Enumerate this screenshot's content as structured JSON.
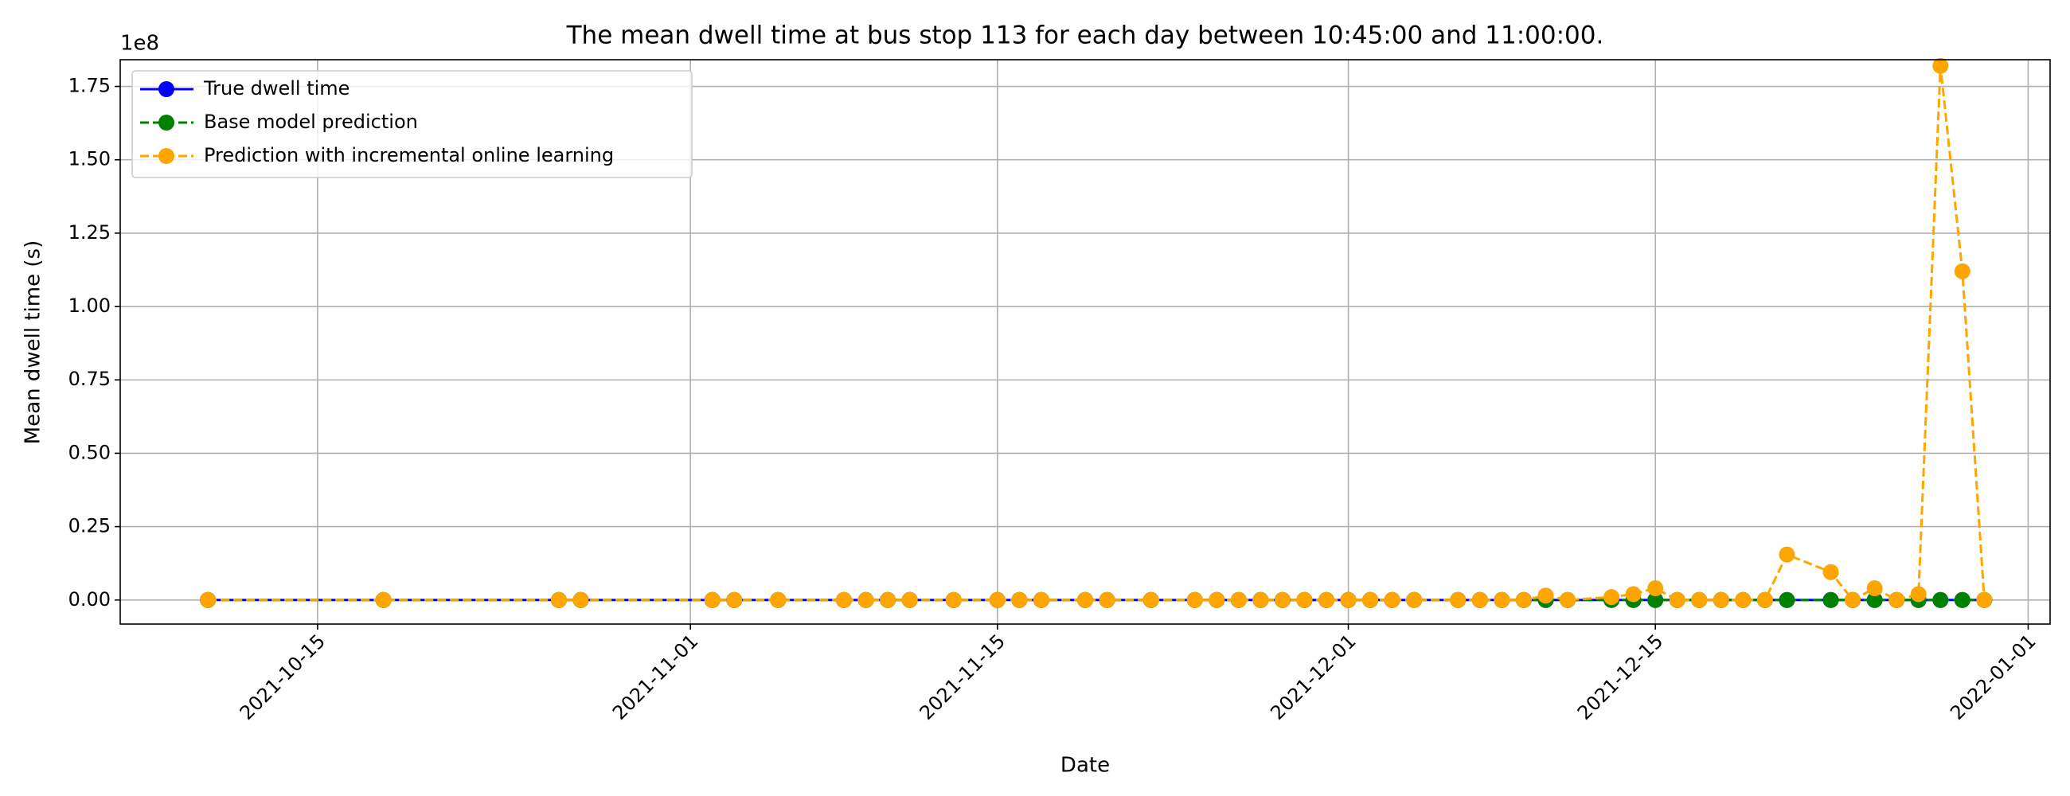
{
  "chart_data": {
    "type": "line",
    "title": "The mean dwell time at bus stop 113 for each day between 10:45:00 and 11:00:00.",
    "x_label": "Date",
    "y_label": "Mean dwell time (s)",
    "y_offset_label": "1e8",
    "x": [
      "2021-10-10",
      "2021-10-18",
      "2021-10-26",
      "2021-10-27",
      "2021-11-02",
      "2021-11-03",
      "2021-11-05",
      "2021-11-08",
      "2021-11-09",
      "2021-11-10",
      "2021-11-11",
      "2021-11-13",
      "2021-11-15",
      "2021-11-16",
      "2021-11-17",
      "2021-11-19",
      "2021-11-20",
      "2021-11-22",
      "2021-11-24",
      "2021-11-25",
      "2021-11-26",
      "2021-11-27",
      "2021-11-28",
      "2021-11-29",
      "2021-11-30",
      "2021-12-01",
      "2021-12-02",
      "2021-12-03",
      "2021-12-04",
      "2021-12-06",
      "2021-12-07",
      "2021-12-08",
      "2021-12-09",
      "2021-12-10",
      "2021-12-11",
      "2021-12-13",
      "2021-12-14",
      "2021-12-15",
      "2021-12-16",
      "2021-12-17",
      "2021-12-18",
      "2021-12-19",
      "2021-12-20",
      "2021-12-21",
      "2021-12-23",
      "2021-12-24",
      "2021-12-25",
      "2021-12-26",
      "2021-12-27",
      "2021-12-28",
      "2021-12-29",
      "2021-12-30"
    ],
    "series": [
      {
        "name": "True dwell time",
        "color": "blue",
        "dashed": false,
        "values": [
          30,
          30,
          30,
          30,
          30,
          30,
          30,
          30,
          30,
          30,
          30,
          30,
          30,
          30,
          30,
          30,
          30,
          30,
          30,
          30,
          30,
          30,
          30,
          30,
          30,
          30,
          30,
          30,
          30,
          30,
          30,
          30,
          30,
          30,
          30,
          30,
          30,
          30,
          30,
          30,
          30,
          30,
          30,
          30,
          30,
          30,
          30,
          30,
          30,
          30,
          30,
          30
        ]
      },
      {
        "name": "Base model prediction",
        "color": "green",
        "dashed": true,
        "values": [
          30,
          30,
          30,
          30,
          30,
          30,
          30,
          30,
          30,
          30,
          30,
          30,
          30,
          30,
          30,
          30,
          30,
          30,
          30,
          30,
          30,
          30,
          30,
          30,
          30,
          30,
          30,
          30,
          30,
          30,
          30,
          30,
          30,
          30,
          30,
          30,
          30,
          30,
          30,
          30,
          30,
          30,
          30,
          30,
          30,
          30,
          30,
          30,
          30,
          30,
          30,
          30
        ]
      },
      {
        "name": "Prediction with incremental online learning",
        "color": "orange",
        "dashed": true,
        "values": [
          30,
          30,
          30,
          30,
          30,
          30,
          30,
          30,
          30,
          30,
          30,
          30,
          30,
          30,
          30,
          30,
          30,
          30,
          30,
          30,
          30,
          30,
          30,
          30,
          30,
          30,
          30,
          30,
          30,
          30,
          30,
          30,
          30,
          1500000,
          30,
          1000000,
          2000000,
          4000000,
          30,
          30,
          30,
          30,
          30,
          15500000,
          9500000,
          30,
          4000000,
          30,
          2000000,
          182000000,
          112000000,
          30
        ]
      }
    ],
    "xlim": [
      "2021-10-06",
      "2022-01-02"
    ],
    "xticks": [
      "2021-10-15",
      "2021-11-01",
      "2021-11-15",
      "2021-12-01",
      "2021-12-15",
      "2022-01-01"
    ],
    "ylim": [
      -8200000,
      184100000
    ],
    "yticks": [
      {
        "value": 0,
        "label": "0.00"
      },
      {
        "value": 25000000,
        "label": "0.25"
      },
      {
        "value": 50000000,
        "label": "0.50"
      },
      {
        "value": 75000000,
        "label": "0.75"
      },
      {
        "value": 100000000,
        "label": "1.00"
      },
      {
        "value": 125000000,
        "label": "1.25"
      },
      {
        "value": 150000000,
        "label": "1.50"
      },
      {
        "value": 175000000,
        "label": "1.75"
      }
    ],
    "grid": true,
    "legend": "upper left"
  }
}
